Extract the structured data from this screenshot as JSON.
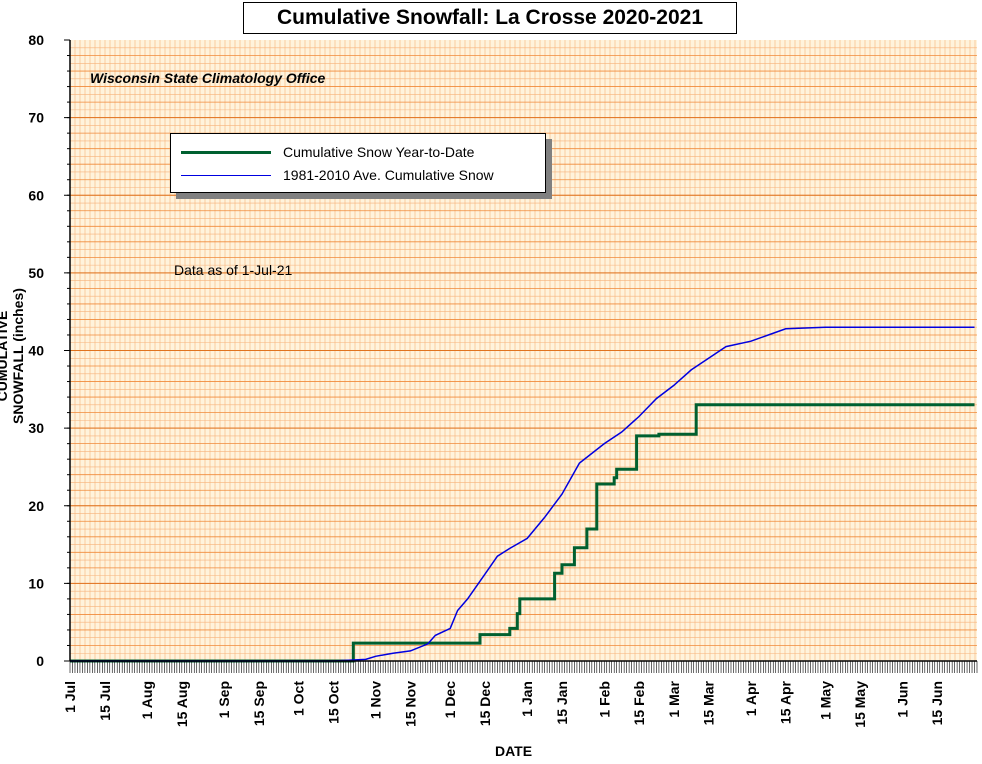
{
  "chart_data": {
    "type": "line",
    "title": "Cumulative Snowfall: La Crosse 2020-2021",
    "subtitle": "Wisconsin State Climatology Office",
    "note": "Data as of 1-Jul-21",
    "xlabel": "DATE",
    "ylabel": "CUMULATIVE SNOWFALL (inches)",
    "ylim": [
      0,
      80
    ],
    "yticks": [
      "0",
      "10",
      "20",
      "30",
      "40",
      "50",
      "60",
      "70",
      "80"
    ],
    "xlim": [
      "2020-07-01",
      "2021-06-30"
    ],
    "xticks": [
      {
        "label": "1 Jul",
        "date": "2020-07-01"
      },
      {
        "label": "15 Jul",
        "date": "2020-07-15"
      },
      {
        "label": "1 Aug",
        "date": "2020-08-01"
      },
      {
        "label": "15 Aug",
        "date": "2020-08-15"
      },
      {
        "label": "1 Sep",
        "date": "2020-09-01"
      },
      {
        "label": "15 Sep",
        "date": "2020-09-15"
      },
      {
        "label": "1 Oct",
        "date": "2020-10-01"
      },
      {
        "label": "15 Oct",
        "date": "2020-10-15"
      },
      {
        "label": "1 Nov",
        "date": "2020-11-01"
      },
      {
        "label": "15 Nov",
        "date": "2020-11-15"
      },
      {
        "label": "1 Dec",
        "date": "2020-12-01"
      },
      {
        "label": "15 Dec",
        "date": "2020-12-15"
      },
      {
        "label": "1 Jan",
        "date": "2021-01-01"
      },
      {
        "label": "15 Jan",
        "date": "2021-01-15"
      },
      {
        "label": "1 Feb",
        "date": "2021-02-01"
      },
      {
        "label": "15 Feb",
        "date": "2021-02-15"
      },
      {
        "label": "1 Mar",
        "date": "2021-03-01"
      },
      {
        "label": "15 Mar",
        "date": "2021-03-15"
      },
      {
        "label": "1 Apr",
        "date": "2021-04-01"
      },
      {
        "label": "15 Apr",
        "date": "2021-04-15"
      },
      {
        "label": "1 May",
        "date": "2021-05-01"
      },
      {
        "label": "15 May",
        "date": "2021-05-15"
      },
      {
        "label": "1 Jun",
        "date": "2021-06-01"
      },
      {
        "label": "15 Jun",
        "date": "2021-06-15"
      }
    ],
    "grid": true,
    "legend_position": "top-left",
    "series": [
      {
        "name": "Cumulative Snow Year-to-Date",
        "color": "#006030",
        "step": true,
        "points": [
          [
            "2020-07-01",
            0
          ],
          [
            "2020-10-22",
            0
          ],
          [
            "2020-10-23",
            2.3
          ],
          [
            "2020-12-13",
            3.4
          ],
          [
            "2020-12-25",
            4.2
          ],
          [
            "2020-12-28",
            6.1
          ],
          [
            "2020-12-29",
            8.0
          ],
          [
            "2021-01-12",
            11.3
          ],
          [
            "2021-01-15",
            12.4
          ],
          [
            "2021-01-20",
            14.6
          ],
          [
            "2021-01-25",
            17.0
          ],
          [
            "2021-01-29",
            22.8
          ],
          [
            "2021-02-05",
            23.6
          ],
          [
            "2021-02-06",
            24.7
          ],
          [
            "2021-02-14",
            29.0
          ],
          [
            "2021-02-23",
            29.2
          ],
          [
            "2021-03-10",
            33.0
          ],
          [
            "2021-06-30",
            33.0
          ]
        ]
      },
      {
        "name": "1981-2010 Ave. Cumulative Snow",
        "color": "#0000e0",
        "step": false,
        "points": [
          [
            "2020-07-01",
            0
          ],
          [
            "2020-10-15",
            0
          ],
          [
            "2020-10-28",
            0.2
          ],
          [
            "2020-11-01",
            0.6
          ],
          [
            "2020-11-08",
            1.0
          ],
          [
            "2020-11-15",
            1.3
          ],
          [
            "2020-11-22",
            2.2
          ],
          [
            "2020-11-25",
            3.3
          ],
          [
            "2020-12-01",
            4.2
          ],
          [
            "2020-12-04",
            6.5
          ],
          [
            "2020-12-08",
            8.0
          ],
          [
            "2020-12-15",
            11.2
          ],
          [
            "2020-12-20",
            13.5
          ],
          [
            "2020-12-25",
            14.5
          ],
          [
            "2021-01-01",
            15.8
          ],
          [
            "2021-01-08",
            18.5
          ],
          [
            "2021-01-15",
            21.5
          ],
          [
            "2021-01-22",
            25.5
          ],
          [
            "2021-02-01",
            28.0
          ],
          [
            "2021-02-08",
            29.5
          ],
          [
            "2021-02-15",
            31.5
          ],
          [
            "2021-02-22",
            33.8
          ],
          [
            "2021-03-01",
            35.5
          ],
          [
            "2021-03-08",
            37.5
          ],
          [
            "2021-03-15",
            39.0
          ],
          [
            "2021-03-22",
            40.5
          ],
          [
            "2021-04-01",
            41.2
          ],
          [
            "2021-04-08",
            42.0
          ],
          [
            "2021-04-15",
            42.8
          ],
          [
            "2021-05-01",
            43.0
          ],
          [
            "2021-06-30",
            43.0
          ]
        ]
      }
    ]
  }
}
